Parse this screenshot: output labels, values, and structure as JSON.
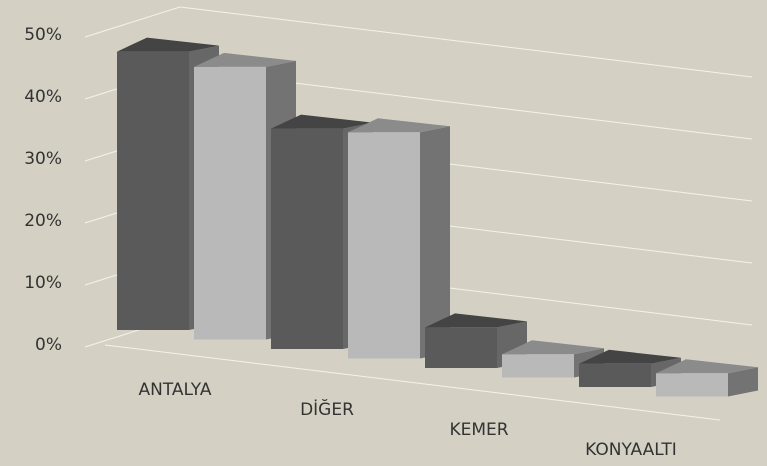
{
  "chart_data": {
    "type": "bar3d",
    "categories": [
      "ANTALYA",
      "DİĞER",
      "KEMER",
      "KONYAALTI"
    ],
    "series": [
      {
        "color": "#5a5a5a",
        "values": [
          48,
          38,
          7,
          4
        ]
      },
      {
        "color": "#b9b9b9",
        "values": [
          47,
          39,
          4,
          4
        ]
      }
    ],
    "ylim": [
      0,
      50
    ],
    "yticks": [
      {
        "value": 0,
        "label": "0%"
      },
      {
        "value": 10,
        "label": "10%"
      },
      {
        "value": 20,
        "label": "20%"
      },
      {
        "value": 30,
        "label": "30%"
      },
      {
        "value": 40,
        "label": "40%"
      },
      {
        "value": 50,
        "label": "50%"
      }
    ],
    "grid": true
  }
}
